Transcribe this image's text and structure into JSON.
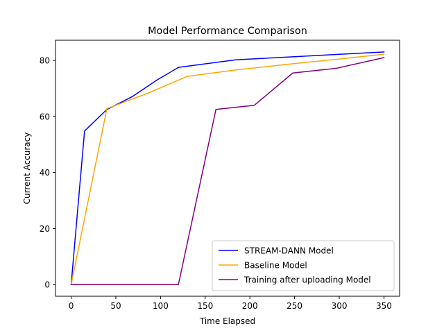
{
  "chart_data": {
    "type": "line",
    "title": "Model Performance Comparison",
    "xlabel": "Time Elapsed",
    "ylabel": "Current Accuracy",
    "xlim": [
      -17.5,
      367.5
    ],
    "ylim": [
      -4.15,
      87.2
    ],
    "xticks": [
      0,
      50,
      100,
      150,
      200,
      250,
      300,
      350
    ],
    "yticks": [
      0,
      20,
      40,
      60,
      80
    ],
    "grid": false,
    "legend_position": "lower right",
    "series": [
      {
        "name": "STREAM-DANN Model",
        "color": "#0000ff",
        "x": [
          0,
          15,
          40,
          68,
          96,
          120,
          184,
          248,
          300,
          350
        ],
        "y": [
          0,
          54.8,
          62.5,
          67,
          73,
          77.5,
          80.2,
          81.3,
          82.2,
          83.0
        ]
      },
      {
        "name": "Baseline Model",
        "color": "#ffa500",
        "x": [
          0,
          40,
          85,
          130,
          184,
          248,
          300,
          350
        ],
        "y": [
          0,
          62.8,
          68.2,
          74.3,
          76.6,
          78.8,
          80.5,
          82.2
        ]
      },
      {
        "name": "Training after uploading Model",
        "color": "#800080",
        "x": [
          0,
          120,
          162,
          205,
          248,
          297,
          350
        ],
        "y": [
          0,
          0,
          62.5,
          64.0,
          75.5,
          77.2,
          81.0
        ]
      }
    ]
  }
}
